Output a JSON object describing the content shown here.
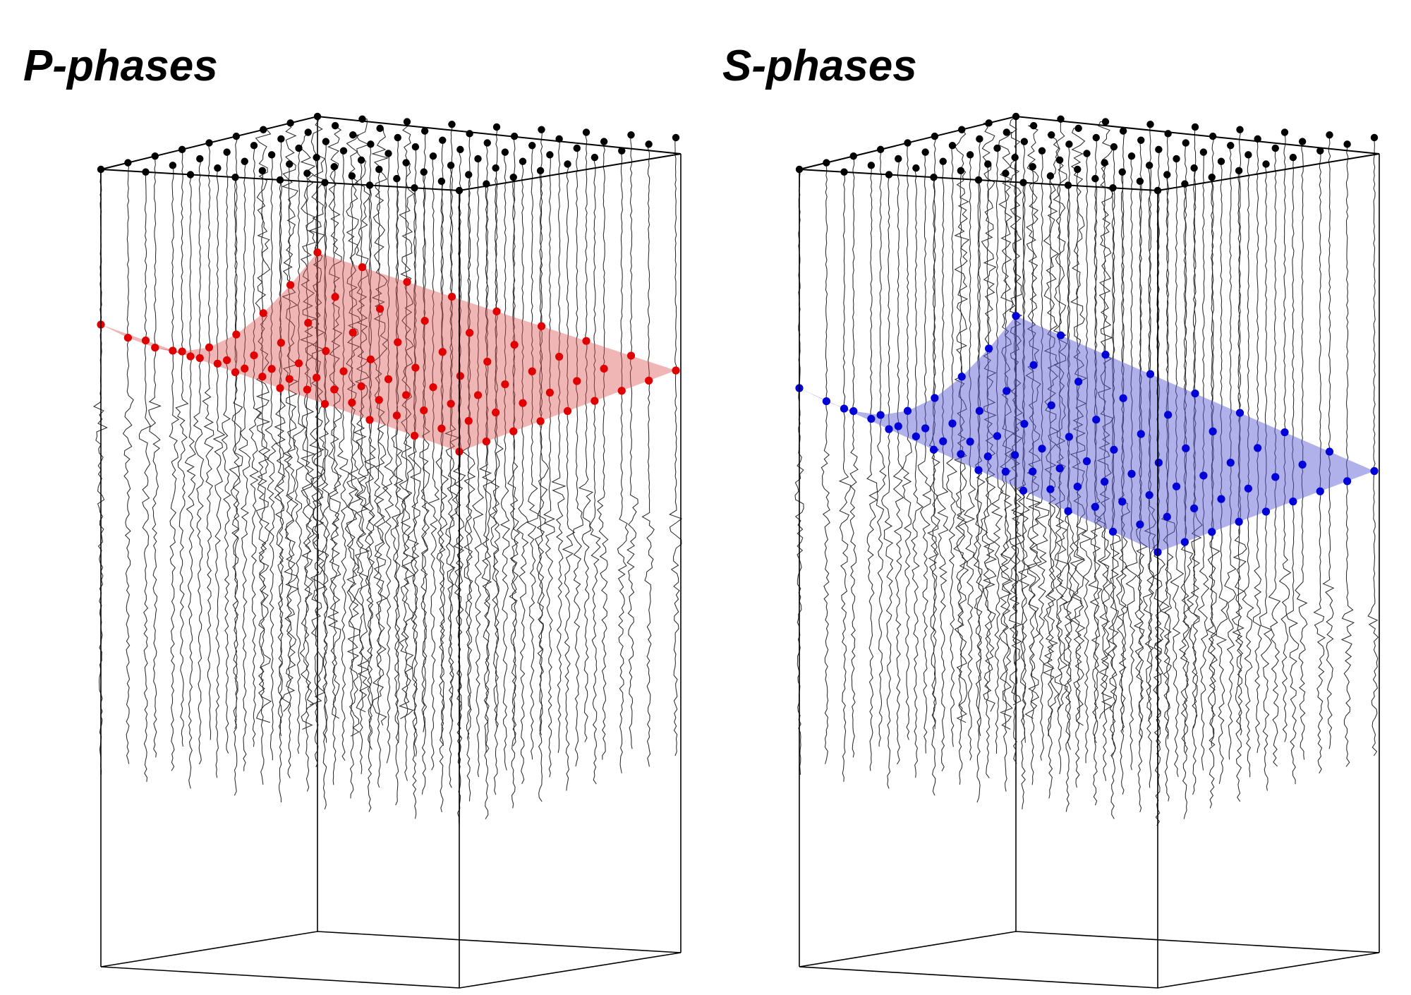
{
  "panels": [
    {
      "id": "p",
      "title": "P-phases",
      "pick_color": "#e00000",
      "surface_color": "#d9504e",
      "surface_opacity": 0.42
    },
    {
      "id": "s",
      "title": "S-phases",
      "pick_color": "#0000d8",
      "surface_color": "#5a5ad6",
      "surface_opacity": 0.48
    }
  ],
  "colors": {
    "frame": "#000000",
    "station": "#000000",
    "trace": "#2a2a2a"
  }
}
